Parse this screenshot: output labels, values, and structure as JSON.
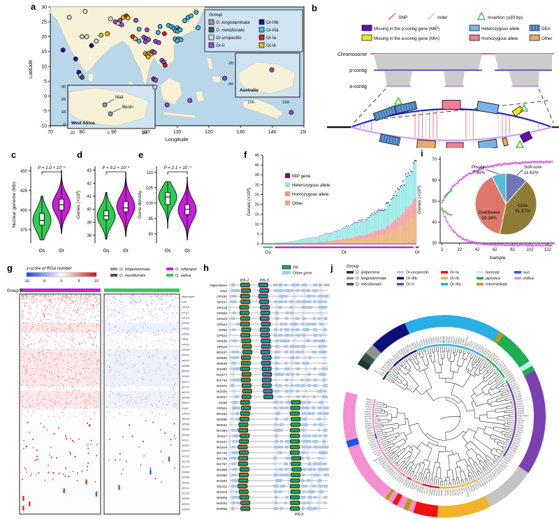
{
  "figure": {
    "panel_letters": {
      "a": "a",
      "b": "b",
      "c": "c",
      "d": "d",
      "e": "e",
      "f": "f",
      "g": "g",
      "h": "h",
      "i": "i",
      "j": "j"
    }
  },
  "panel_a": {
    "xlabel": "Longitude",
    "ylabel": "Latitude",
    "xticks": [
      70,
      80,
      90,
      100,
      110,
      120,
      130,
      140,
      150
    ],
    "yticks": [
      30,
      25,
      20,
      15,
      10,
      5,
      0,
      -5,
      -10
    ],
    "legend": {
      "title": "Group",
      "col1": [
        {
          "key": "lo",
          "label": "O. longistaminata",
          "italic": true
        },
        {
          "key": "me",
          "label": "O. meridionalis",
          "italic": true
        },
        {
          "key": "un",
          "label": "Or-unspecific",
          "italic": false
        },
        {
          "key": "o2",
          "label": "Or-II",
          "italic": false
        }
      ],
      "col2": [
        {
          "key": "o3b",
          "label": "Or-IIIb",
          "italic": false
        },
        {
          "key": "o3a",
          "label": "Or-IIIa",
          "italic": false
        },
        {
          "key": "o1a",
          "label": "Or-Ia",
          "italic": false
        },
        {
          "key": "o1b",
          "label": "Or-Ib",
          "italic": false
        }
      ]
    },
    "group_colors": {
      "lo": "#9a9a9a",
      "me": "#3d5c50",
      "un": "#d9d9d9",
      "o2": "#9b4dca",
      "o3b": "#1a1a8c",
      "o3a": "#45b8e8",
      "o1a": "#e02020",
      "o1b": "#efb810"
    },
    "points": [
      [
        76,
        26.5,
        "un"
      ],
      [
        81,
        28.5,
        "un"
      ],
      [
        74,
        15.5,
        "o3b"
      ],
      [
        78,
        12.5,
        "o3b"
      ],
      [
        79,
        8,
        "o3b"
      ],
      [
        79.5,
        7,
        "un"
      ],
      [
        80,
        6.3,
        "me"
      ],
      [
        80,
        20,
        "un"
      ],
      [
        81.5,
        20,
        "un"
      ],
      [
        83,
        17,
        "o3b"
      ],
      [
        84.5,
        18.5,
        "un"
      ],
      [
        86,
        20.5,
        "o1b"
      ],
      [
        88,
        21,
        "o1b"
      ],
      [
        89,
        26,
        "un"
      ],
      [
        90.5,
        25,
        "o2"
      ],
      [
        91.5,
        24.5,
        "un"
      ],
      [
        92,
        25.5,
        "o2"
      ],
      [
        92.5,
        24,
        "o2"
      ],
      [
        93,
        26.5,
        "o1b"
      ],
      [
        94,
        27,
        "o1a"
      ],
      [
        94.5,
        26.3,
        "o1b"
      ],
      [
        96,
        20,
        "o1a"
      ],
      [
        96.8,
        19.3,
        "o1b"
      ],
      [
        97,
        25.5,
        "o2"
      ],
      [
        98,
        22.5,
        "o3a"
      ],
      [
        98,
        18.5,
        "o3a"
      ],
      [
        99.5,
        19.8,
        "o2"
      ],
      [
        100.3,
        19.3,
        "o2"
      ],
      [
        100,
        18.3,
        "o2"
      ],
      [
        101,
        19,
        "o2"
      ],
      [
        100.5,
        22.3,
        "o2"
      ],
      [
        100,
        14.3,
        "o1b"
      ],
      [
        100.6,
        13.9,
        "o1b"
      ],
      [
        101.2,
        14.5,
        "o1b"
      ],
      [
        101.8,
        14.2,
        "o1b"
      ],
      [
        100.9,
        13.2,
        "o1b"
      ],
      [
        102.2,
        15,
        "o2"
      ],
      [
        102.8,
        14.7,
        "o2"
      ],
      [
        103.2,
        18.4,
        "o2"
      ],
      [
        104.2,
        18,
        "o2"
      ],
      [
        104,
        21.4,
        "o3a"
      ],
      [
        104.6,
        23.4,
        "o3a"
      ],
      [
        105.2,
        12,
        "o2"
      ],
      [
        105.8,
        11.4,
        "o2"
      ],
      [
        106.2,
        10.4,
        "o1a"
      ],
      [
        106,
        21,
        "o1a"
      ],
      [
        107.3,
        23.8,
        "o3a"
      ],
      [
        108.2,
        23.4,
        "o3a"
      ],
      [
        109,
        22.8,
        "o3a"
      ],
      [
        110,
        23,
        "o3a"
      ],
      [
        110.6,
        22.4,
        "o3a"
      ],
      [
        109.5,
        22,
        "o3a"
      ],
      [
        110.2,
        21.8,
        "o3a"
      ],
      [
        111,
        22.3,
        "o3a"
      ],
      [
        109.4,
        19.2,
        "o3a"
      ],
      [
        110.4,
        19.3,
        "o3a"
      ],
      [
        111.2,
        19,
        "o3a"
      ],
      [
        110,
        18.6,
        "o3a"
      ],
      [
        112.4,
        25.4,
        "o3a"
      ],
      [
        113.4,
        26.4,
        "o3a"
      ],
      [
        114.4,
        27,
        "o3a"
      ],
      [
        116,
        28.2,
        "o3a"
      ],
      [
        116.6,
        23,
        "o3a"
      ],
      [
        102.6,
        5.8,
        "o1a"
      ],
      [
        103.2,
        5.4,
        "o2"
      ],
      [
        103,
        3,
        "un"
      ],
      [
        106.8,
        -3,
        "o2"
      ],
      [
        114,
        -1.5,
        "o2"
      ],
      [
        125,
        6,
        "o2"
      ],
      [
        146,
        -5.5,
        "o2"
      ]
    ],
    "insets": {
      "west_africa": {
        "label": "West Africa",
        "yticks": [
          30,
          20,
          10,
          0
        ],
        "xticks": [
          -20,
          0,
          20
        ],
        "cities": [
          "Mali",
          "Benin"
        ]
      },
      "australia": {
        "label": "Australia",
        "yticks": [
          -20,
          -40
        ],
        "xticks": [
          125,
          150
        ]
      }
    }
  },
  "panel_b": {
    "legend": {
      "snp": "SNP",
      "indel": "Indel",
      "insertion": "Insertion (≥30 bp)",
      "mip": "Missing in the p-contig gene (MIP)",
      "het": "Heterozygous allele",
      "dea": "DEA",
      "mia": "Missing in the a-contig gene (MIA)",
      "hom": "Homozygous allele",
      "other": "Other"
    },
    "rows": [
      "Chromosome",
      "p-contig",
      "a-contig"
    ],
    "colors": {
      "snp": "#e05555",
      "indel": "#c9b8f0",
      "insertion": "#22bb22",
      "mip": "#6a0dad",
      "het": "#7ab3e8",
      "mia": "#f5e616",
      "hom": "#f27f96",
      "other": "#e8a96b"
    }
  },
  "violins": [
    {
      "id": "c",
      "ylabel": "Nuclear genome (Mb)",
      "p_label": "P = 1.0 × 10⁻⁶",
      "ticks": [
        375,
        400,
        425,
        450
      ],
      "domain": [
        358,
        456
      ],
      "os": {
        "min": 362,
        "max": 418,
        "mu": 387,
        "sig": 14,
        "q1": 381,
        "q3": 396,
        "med": 387
      },
      "or": {
        "min": 370,
        "max": 451,
        "mu": 407,
        "sig": 13,
        "q1": 400,
        "q3": 414,
        "med": 407
      },
      "xlabels": [
        "Os",
        "Or"
      ]
    },
    {
      "id": "d",
      "ylabel": "Genes (×10³)",
      "p_label": "P = 9.2 × 10⁻⁴",
      "ticks": [
        38,
        39,
        40,
        41,
        42,
        43
      ],
      "domain": [
        37.4,
        43.3
      ],
      "os": {
        "min": 37.7,
        "max": 41.3,
        "mu": 39.5,
        "sig": 0.75,
        "q1": 39.2,
        "q3": 39.9,
        "med": 39.5
      },
      "or": {
        "min": 37.9,
        "max": 42.8,
        "mu": 40.2,
        "sig": 0.8,
        "q1": 39.8,
        "q3": 40.6,
        "med": 40.1
      },
      "xlabels": [
        "Os",
        "Or"
      ]
    },
    {
      "id": "e",
      "ylabel": "Gene density",
      "p_label": "P = 2.1 × 10⁻³",
      "ticks": [
        90,
        95,
        100,
        105,
        110
      ],
      "domain": [
        87,
        112
      ],
      "os": {
        "min": 91.8,
        "max": 107,
        "mu": 102,
        "sig": 3.1,
        "q1": 99.5,
        "q3": 103.5,
        "med": 102
      },
      "or": {
        "min": 88,
        "max": 108.5,
        "mu": 97.8,
        "sig": 3.4,
        "q1": 96.3,
        "q3": 99.5,
        "med": 98
      },
      "xlabels": [
        "Os",
        "Or"
      ]
    },
    {
      "os_color": "#2ecc52",
      "or_color": "#c81ed8"
    }
  ],
  "panel_f": {
    "ylabel": "Genes (×10³)",
    "yticks": [
      0,
      5,
      10,
      15,
      20,
      25,
      30,
      35,
      40,
      45
    ],
    "legend": [
      {
        "label": "MIP gene",
        "color": "#6a0dad"
      },
      {
        "label": "Heterozygous allele",
        "color": "#8fe8e4"
      },
      {
        "label": "Homozygous allele",
        "color": "#f2949a"
      },
      {
        "label": "Other",
        "color": "#e8aa70"
      }
    ],
    "n_bars": 118,
    "groups": [
      {
        "label": "Os",
        "n": 8,
        "color": "#2ecc52"
      },
      {
        "label": "Or",
        "n": 107,
        "color": "#c81ed8"
      },
      {
        "label": "Ol",
        "n": 3,
        "color": "#555555"
      }
    ],
    "envelope": {
      "idx": [
        0,
        8,
        20,
        40,
        60,
        80,
        95,
        105,
        112,
        117
      ],
      "total": [
        0.3,
        0.5,
        1.2,
        3.5,
        7.5,
        13,
        20,
        28,
        37,
        41
      ]
    }
  },
  "panel_i": {
    "ylabel": "Genes (×10³)",
    "xlabel": "Sample",
    "yticks": [
      30,
      40,
      50,
      60,
      70
    ],
    "xticks": [
      2,
      22,
      42,
      62,
      82,
      102,
      122
    ],
    "pan_curve": {
      "color": "#d23bd2",
      "start_y": 49,
      "end_y": 69
    },
    "core_curve": {
      "color": "#d23bd2",
      "start_y": 47,
      "end_y": 29
    },
    "sativa_curves": {
      "color": "#2ecc40",
      "pan_end": 55,
      "core_end": 43,
      "x_max": 13
    },
    "pie": {
      "slices": [
        {
          "label": "Soft-core",
          "pct": 11.61,
          "color": "#7077b9"
        },
        {
          "label": "Core",
          "pct": 41.57,
          "color": "#8f7c35"
        },
        {
          "label": "Distributed",
          "pct": 39.36,
          "color": "#e0776b"
        },
        {
          "label": "Private",
          "pct": 7.45,
          "color": "#52bdd8"
        }
      ]
    }
  },
  "panel_g": {
    "scale_title": "z-score of RGA number",
    "scale_ticks": [
      -10,
      -5,
      0,
      5,
      10
    ],
    "species": [
      {
        "label": "O. longistaminata",
        "color": "#9a9a9a"
      },
      {
        "label": "O. meridionalis",
        "color": "#3d5c50"
      },
      {
        "label": "O. rufipogon",
        "color": "#c81ed8"
      },
      {
        "label": "O. sativa",
        "color": "#2ecc52"
      }
    ],
    "group_label": "Group",
    "left_bar": [
      {
        "color": "#3d5c50",
        "frac": 0.05
      },
      {
        "color": "#c81ed8",
        "frac": 0.95
      }
    ],
    "right_bar": [
      {
        "color": "#2ecc52",
        "frac": 1.0
      }
    ]
  },
  "panel_h": {
    "legend": [
      {
        "label": "Pi5",
        "color": "#12a48e"
      },
      {
        "label": "Other gene",
        "color": "#aac9f0"
      }
    ],
    "headers": {
      "col1": "Pi5-1",
      "col2": "Pi5-3",
      "bottom": "Pi5-2"
    },
    "samples": [
      "Nipponbare",
      "Gla4",
      "GP100",
      "GP117",
      "GP119",
      "GP505",
      "GP523",
      "GP543",
      "GP58",
      "GP622",
      "GP635",
      "HP519",
      "W0157",
      "W0596",
      "W0639",
      "W1080",
      "W1677",
      "W1742",
      "W1970",
      "W2036",
      "W3037",
      "534M",
      "GP524",
      "W0164",
      "W0590",
      "W0632",
      "W1084",
      "W1117",
      "W1547",
      "W1619",
      "W1732",
      "W1736",
      "W1787",
      "W1865",
      "W2066",
      "W2283",
      "W2311",
      "W2319",
      "W3009",
      "W3033",
      "W3055"
    ],
    "pink_rows": [
      0,
      20
    ],
    "green_rows": [
      21,
      40
    ],
    "ribbon_colors": {
      "pi51": "#f0913c",
      "pi53": "#d873c0",
      "pi52": "#c6dd4e"
    }
  },
  "panel_j": {
    "legend_title": "Group",
    "legend_cols": [
      [
        {
          "label": "O. glaberrima",
          "color": "#1c3733",
          "italic": true
        },
        {
          "label": "O. longistaminata",
          "color": "#8c9494",
          "italic": true
        },
        {
          "label": "O. meridionalis",
          "color": "#37514a",
          "italic": true
        }
      ],
      [
        {
          "label": "Or-unspecific",
          "color": "#c4c4c4",
          "italic": false
        },
        {
          "label": "Or-IIIb",
          "color": "#10107a",
          "italic": false
        },
        {
          "label": "Or-II",
          "color": "#7c3faf",
          "italic": false
        }
      ],
      [
        {
          "label": "Or-Ia",
          "color": "#ee1111",
          "italic": false
        },
        {
          "label": "Or-Ib",
          "color": "#f2b32a",
          "italic": false
        },
        {
          "label": "Or-IIIa",
          "color": "#29aee6",
          "italic": false
        }
      ],
      [
        {
          "label": "basmati",
          "color": "#bfeee4",
          "italic": true
        },
        {
          "label": "japonica",
          "color": "#1daf54",
          "italic": true
        },
        {
          "label": "Intermediate",
          "color": "#b39b1d",
          "italic": false
        }
      ],
      [
        {
          "label": "aus",
          "color": "#2255ee",
          "italic": true
        },
        {
          "label": "indica",
          "color": "#f48fd0",
          "italic": true
        }
      ]
    ],
    "ring_segments": [
      {
        "a0": 301,
        "a1": 305,
        "color": "#1c3733"
      },
      {
        "a0": 305,
        "a1": 309,
        "color": "#37514a"
      },
      {
        "a0": 309,
        "a1": 315,
        "color": "#8c9494"
      },
      {
        "a0": 315,
        "a1": 337,
        "color": "#10107a"
      },
      {
        "a0": 337,
        "a1": 393,
        "color": "#29aee6"
      },
      {
        "a0": 33,
        "a1": 36,
        "color": "#b39b1d"
      },
      {
        "a0": 36,
        "a1": 57,
        "color": "#1daf54"
      },
      {
        "a0": 57,
        "a1": 60,
        "color": "#bfeee4"
      },
      {
        "a0": 60,
        "a1": 63,
        "color": "#1daf54"
      },
      {
        "a0": 63,
        "a1": 124,
        "color": "#7c3faf"
      },
      {
        "a0": 124,
        "a1": 153,
        "color": "#c4c4c4"
      },
      {
        "a0": 153,
        "a1": 184,
        "color": "#f2b32a"
      },
      {
        "a0": 184,
        "a1": 198,
        "color": "#ee1111"
      },
      {
        "a0": 198,
        "a1": 201,
        "color": "#f48fd0"
      },
      {
        "a0": 201,
        "a1": 204,
        "color": "#b39b1d"
      },
      {
        "a0": 204,
        "a1": 208,
        "color": "#f48fd0"
      },
      {
        "a0": 208,
        "a1": 211,
        "color": "#ee1111"
      },
      {
        "a0": 211,
        "a1": 214,
        "color": "#f48fd0"
      },
      {
        "a0": 214,
        "a1": 216,
        "color": "#b39b1d"
      },
      {
        "a0": 216,
        "a1": 252,
        "color": "#f48fd0"
      },
      {
        "a0": 252,
        "a1": 256,
        "color": "#2255ee"
      },
      {
        "a0": 256,
        "a1": 284,
        "color": "#f48fd0"
      }
    ],
    "gap": [
      284,
      301
    ],
    "n_leaves": 190
  },
  "chart_data": [
    {
      "id": "c",
      "type": "violin",
      "title": "Nuclear genome (Mb)",
      "categories": [
        "Os",
        "Or"
      ],
      "medians": [
        387,
        407
      ],
      "q1": [
        381,
        400
      ],
      "q3": [
        396,
        414
      ],
      "range_os": [
        362,
        418
      ],
      "range_or": [
        370,
        451
      ],
      "p_value": "1.0 × 10⁻⁶",
      "ylim": [
        358,
        456
      ]
    },
    {
      "id": "d",
      "type": "violin",
      "title": "Genes (×10³)",
      "categories": [
        "Os",
        "Or"
      ],
      "medians": [
        39.5,
        40.1
      ],
      "q1": [
        39.2,
        39.8
      ],
      "q3": [
        39.9,
        40.6
      ],
      "range_os": [
        37.7,
        41.3
      ],
      "range_or": [
        37.9,
        42.8
      ],
      "p_value": "9.2 × 10⁻⁴",
      "ylim": [
        37.4,
        43.3
      ]
    },
    {
      "id": "e",
      "type": "violin",
      "title": "Gene density",
      "categories": [
        "Os",
        "Or"
      ],
      "medians": [
        102,
        98
      ],
      "q1": [
        99.5,
        96.3
      ],
      "q3": [
        103.5,
        99.5
      ],
      "range_os": [
        91.8,
        107
      ],
      "range_or": [
        88,
        108.5
      ],
      "p_value": "2.1 × 10⁻³",
      "ylim": [
        87,
        112
      ]
    },
    {
      "id": "f",
      "type": "bar",
      "stacked": true,
      "series": [
        "MIP gene",
        "Heterozygous allele",
        "Homozygous allele",
        "Other"
      ],
      "ylabel": "Genes (×10³)",
      "ylim": [
        0,
        45
      ],
      "x_groups": [
        "Os",
        "Or",
        "Ol"
      ],
      "totals_envelope_x": [
        0,
        8,
        20,
        40,
        60,
        80,
        95,
        105,
        112,
        117
      ],
      "totals_envelope_y": [
        0.3,
        0.5,
        1.2,
        3.5,
        7.5,
        13,
        20,
        28,
        37,
        41
      ]
    },
    {
      "id": "i",
      "type": "scatter",
      "ylabel": "Genes (×10³)",
      "xlabel": "Sample",
      "ylim": [
        27,
        71
      ],
      "xlim": [
        0,
        130
      ],
      "pan_genome_curve": [
        [
          2,
          49
        ],
        [
          22,
          61
        ],
        [
          62,
          66
        ],
        [
          127,
          69
        ]
      ],
      "core_genome_curve": [
        [
          2,
          47
        ],
        [
          22,
          33
        ],
        [
          62,
          29.5
        ],
        [
          127,
          29
        ]
      ]
    },
    {
      "id": "i-pie",
      "type": "pie",
      "labels": [
        "Soft-core",
        "Core",
        "Distributed",
        "Private"
      ],
      "values": [
        11.61,
        41.57,
        39.36,
        7.45
      ]
    }
  ]
}
